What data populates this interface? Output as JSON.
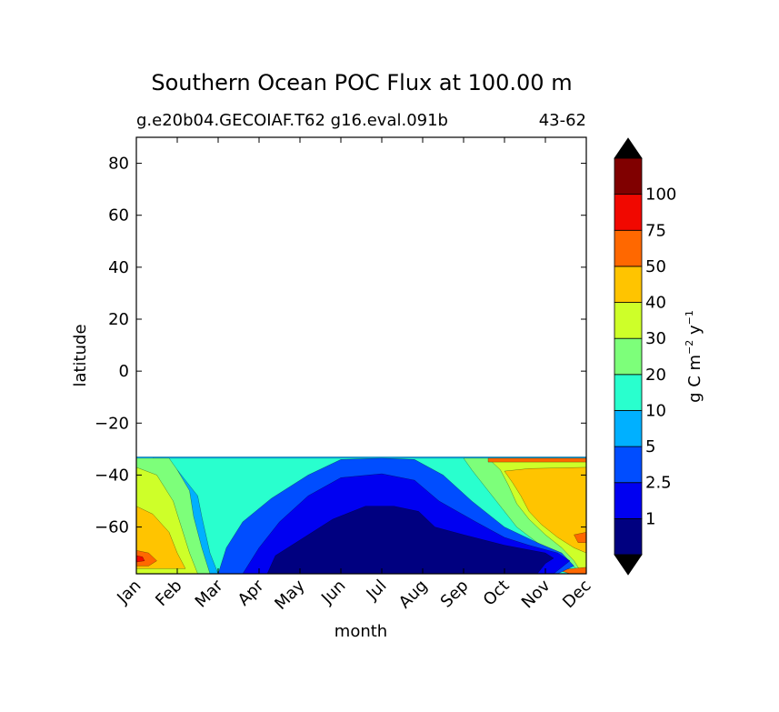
{
  "chart_data": {
    "type": "contourf",
    "title": "Southern Ocean POC Flux at 100.00 m",
    "subtitle_left": "g.e20b04.GECOIAF.T62 g16.eval.091b",
    "subtitle_right": "43-62",
    "xlabel": "month",
    "ylabel": "latitude",
    "x_categories": [
      "Jan",
      "Feb",
      "Mar",
      "Apr",
      "May",
      "Jun",
      "Jul",
      "Aug",
      "Sep",
      "Oct",
      "Nov",
      "Dec"
    ],
    "ylim": [
      -78,
      90
    ],
    "y_ticks": [
      {
        "value": 80,
        "label": "80"
      },
      {
        "value": 60,
        "label": "60"
      },
      {
        "value": 40,
        "label": "40"
      },
      {
        "value": 20,
        "label": "20"
      },
      {
        "value": 0,
        "label": "0"
      },
      {
        "value": -20,
        "label": "−20"
      },
      {
        "value": -40,
        "label": "−40"
      },
      {
        "value": -60,
        "label": "−60"
      }
    ],
    "data_extent_lat": [
      -78,
      -33
    ],
    "colorbar": {
      "label_main": "g C m",
      "label_sup1": "−2",
      "label_mid": " y",
      "label_sup2": "−1",
      "extend": "both",
      "level_labels": [
        "1",
        "2.5",
        "5",
        "10",
        "20",
        "30",
        "40",
        "50",
        "75",
        "100"
      ],
      "colors": [
        "#000080",
        "#0000f1",
        "#004dff",
        "#00b0ff",
        "#29ffce",
        "#7dff7a",
        "#ceff29",
        "#ffc400",
        "#ff6800",
        "#f10800",
        "#800000"
      ],
      "under_color": "#000000",
      "over_color": "#000000"
    },
    "bands": [
      {
        "level_index": 3,
        "points": [
          [
            0,
            -33
          ],
          [
            11,
            -33
          ],
          [
            11,
            -78
          ],
          [
            0,
            -78
          ]
        ]
      },
      {
        "level_index": 4,
        "points": [
          [
            0.4,
            -33.5
          ],
          [
            10.3,
            -33.5
          ],
          [
            10.6,
            -72
          ],
          [
            11,
            -76
          ],
          [
            11,
            -78
          ],
          [
            2.0,
            -78
          ],
          [
            1.8,
            -70
          ],
          [
            1.6,
            -56
          ],
          [
            1.5,
            -48
          ],
          [
            1.0,
            -38
          ],
          [
            0.7,
            -34.5
          ]
        ]
      },
      {
        "level_index": 5,
        "points": [
          [
            0,
            -33.5
          ],
          [
            0.8,
            -33.5
          ],
          [
            1.0,
            -38
          ],
          [
            1.3,
            -46
          ],
          [
            1.4,
            -56
          ],
          [
            1.6,
            -68
          ],
          [
            1.8,
            -78
          ],
          [
            0,
            -78
          ]
        ]
      },
      {
        "level_index": 5,
        "points": [
          [
            8.0,
            -33.5
          ],
          [
            11,
            -33.5
          ],
          [
            11,
            -78
          ],
          [
            10.9,
            -78
          ],
          [
            10.6,
            -74
          ],
          [
            10.2,
            -70
          ],
          [
            9.8,
            -66
          ],
          [
            9.3,
            -60
          ],
          [
            8.9,
            -52
          ],
          [
            8.5,
            -44
          ],
          [
            8.2,
            -38
          ]
        ]
      },
      {
        "level_index": 6,
        "points": [
          [
            8.6,
            -33.5
          ],
          [
            11,
            -33.5
          ],
          [
            11,
            -78
          ],
          [
            10.9,
            -78
          ],
          [
            10.7,
            -73
          ],
          [
            10.4,
            -68
          ],
          [
            10.0,
            -63
          ],
          [
            9.6,
            -57
          ],
          [
            9.3,
            -51
          ],
          [
            9.1,
            -44
          ],
          [
            8.9,
            -38
          ]
        ]
      },
      {
        "level_index": 6,
        "points": [
          [
            0,
            -37
          ],
          [
            0.5,
            -40
          ],
          [
            0.9,
            -50
          ],
          [
            1.1,
            -60
          ],
          [
            1.3,
            -70
          ],
          [
            1.5,
            -78
          ],
          [
            0,
            -78
          ]
        ]
      },
      {
        "level_index": 7,
        "points": [
          [
            9.0,
            -38.5
          ],
          [
            9.6,
            -37.5
          ],
          [
            11,
            -37
          ],
          [
            11,
            -70
          ],
          [
            10.7,
            -68
          ],
          [
            10.3,
            -64
          ],
          [
            9.9,
            -59
          ],
          [
            9.6,
            -54
          ],
          [
            9.4,
            -48
          ],
          [
            9.2,
            -43
          ]
        ]
      },
      {
        "level_index": 7,
        "points": [
          [
            0,
            -52
          ],
          [
            0.4,
            -55
          ],
          [
            0.8,
            -62
          ],
          [
            1.0,
            -70
          ],
          [
            1.2,
            -76
          ],
          [
            0,
            -76
          ]
        ]
      },
      {
        "level_index": 8,
        "points": [
          [
            10.7,
            -63
          ],
          [
            11,
            -62
          ],
          [
            11,
            -66
          ],
          [
            10.8,
            -66
          ]
        ]
      },
      {
        "level_index": 8,
        "points": [
          [
            0,
            -69
          ],
          [
            0.3,
            -70
          ],
          [
            0.5,
            -73
          ],
          [
            0.3,
            -75
          ],
          [
            0,
            -75
          ]
        ]
      },
      {
        "level_index": 8,
        "points": [
          [
            8.6,
            -33.5
          ],
          [
            11,
            -33.5
          ],
          [
            11,
            -35
          ],
          [
            8.6,
            -35
          ]
        ]
      },
      {
        "level_index": 8,
        "points": [
          [
            10.3,
            -76.5
          ],
          [
            11,
            -75.5
          ],
          [
            11,
            -78
          ],
          [
            10.6,
            -78
          ]
        ]
      },
      {
        "level_index": 9,
        "points": [
          [
            0,
            -71
          ],
          [
            0.15,
            -71.5
          ],
          [
            0.2,
            -73
          ],
          [
            0,
            -73.5
          ]
        ]
      },
      {
        "level_index": 2,
        "points": [
          [
            2.0,
            -78
          ],
          [
            2.2,
            -68
          ],
          [
            2.6,
            -58
          ],
          [
            3.3,
            -49
          ],
          [
            4.2,
            -40
          ],
          [
            5.0,
            -34
          ],
          [
            6.0,
            -33.5
          ],
          [
            6.8,
            -34
          ],
          [
            7.5,
            -40
          ],
          [
            8.2,
            -50
          ],
          [
            9.0,
            -60
          ],
          [
            9.8,
            -66
          ],
          [
            10.4,
            -70
          ],
          [
            10.7,
            -75
          ],
          [
            10.3,
            -78
          ]
        ]
      },
      {
        "level_index": 1,
        "points": [
          [
            2.6,
            -78
          ],
          [
            3.0,
            -68
          ],
          [
            3.5,
            -58
          ],
          [
            4.2,
            -48
          ],
          [
            5.0,
            -41
          ],
          [
            6.0,
            -39.5
          ],
          [
            6.8,
            -42
          ],
          [
            7.4,
            -50
          ],
          [
            8.3,
            -58
          ],
          [
            9.0,
            -64
          ],
          [
            9.6,
            -67
          ],
          [
            10.3,
            -70
          ],
          [
            10.6,
            -73
          ],
          [
            10.2,
            -78
          ]
        ]
      },
      {
        "level_index": 0,
        "points": [
          [
            3.2,
            -78
          ],
          [
            3.4,
            -71
          ],
          [
            4.0,
            -65
          ],
          [
            4.8,
            -57
          ],
          [
            5.6,
            -52
          ],
          [
            6.3,
            -52
          ],
          [
            6.9,
            -54
          ],
          [
            7.3,
            -60
          ],
          [
            8.0,
            -63
          ],
          [
            9.0,
            -67
          ],
          [
            10.0,
            -70
          ],
          [
            10.2,
            -72
          ],
          [
            10.0,
            -74
          ],
          [
            9.8,
            -78
          ]
        ]
      }
    ]
  }
}
